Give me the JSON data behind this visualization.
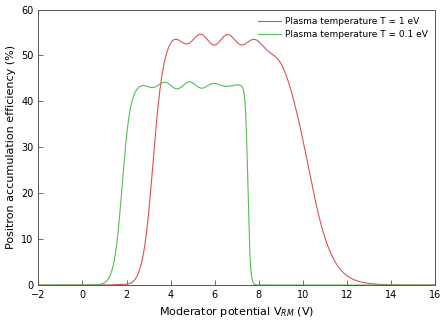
{
  "title": "",
  "xlabel": "Moderator potential V$_{RM}$ (V)",
  "ylabel": "Positron accumulation efficiency (%)",
  "xlim": [
    -2,
    16
  ],
  "ylim": [
    0,
    60
  ],
  "xticks": [
    -2,
    0,
    2,
    4,
    6,
    8,
    10,
    12,
    14,
    16
  ],
  "yticks": [
    0,
    10,
    20,
    30,
    40,
    50,
    60
  ],
  "legend_1": "Plasma temperature T = 1 eV",
  "legend_2": "Plasma temperature T = 0.1 eV",
  "color_red": "#e05050",
  "color_green": "#50c050",
  "background_color": "#ffffff"
}
